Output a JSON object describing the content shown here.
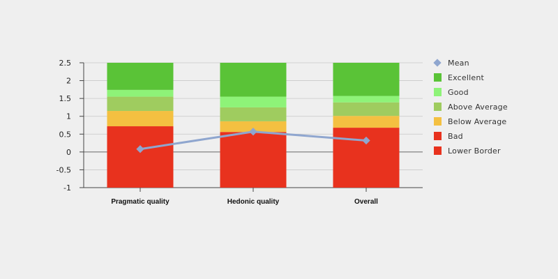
{
  "chart_data": {
    "type": "bar",
    "stacked": true,
    "categories": [
      "Pragmatic quality",
      "Hedonic quality",
      "Overall"
    ],
    "ylim": [
      -1,
      2.5
    ],
    "yticks": [
      "2.5",
      "2",
      "1.5",
      "1",
      "0.5",
      "0",
      "-0.5",
      "-1"
    ],
    "grid": true,
    "legend_position": "right",
    "series": [
      {
        "name": "Lower Border",
        "color": "#e8321e",
        "values": [
          -1,
          -1,
          -1
        ]
      },
      {
        "name": "Bad",
        "color": "#e8321e",
        "values": [
          0.72,
          0.56,
          0.68
        ]
      },
      {
        "name": "Below Average",
        "color": "#f4c041",
        "values": [
          1.15,
          0.86,
          1.01
        ]
      },
      {
        "name": "Above Average",
        "color": "#9fcc5f",
        "values": [
          1.55,
          1.25,
          1.39
        ]
      },
      {
        "name": "Good",
        "color": "#8ef378",
        "values": [
          1.74,
          1.55,
          1.57
        ]
      },
      {
        "name": "Excellent",
        "color": "#5ac337",
        "values": [
          2.5,
          2.5,
          2.5
        ]
      }
    ],
    "mean": {
      "name": "Mean",
      "color": "#8fa6cf",
      "values": [
        0.08,
        0.57,
        0.32
      ]
    }
  }
}
